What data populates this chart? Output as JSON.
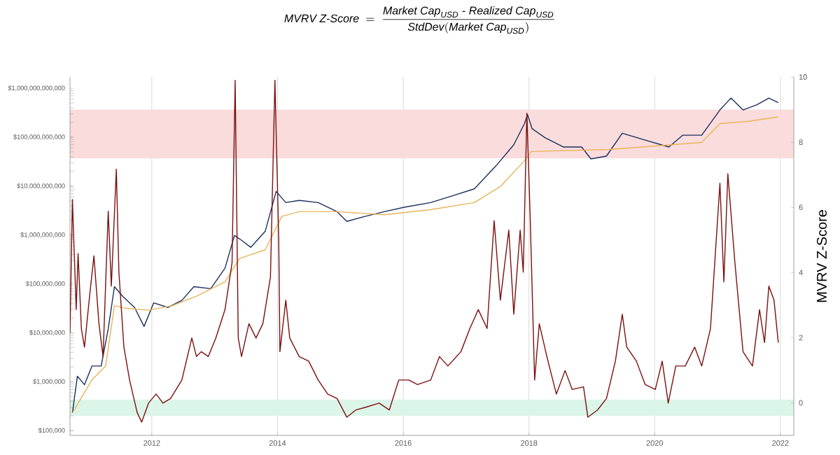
{
  "chart_data": {
    "type": "line",
    "title": "\\mathit{MVRV\\ Z\\mbox{-}Score}\\ =\\ \\frac{\\mathit{Market\\ Cap}_{\\mathit{USD}}\\mbox{ - }\\mathit{Realized\\ Cap}_{\\mathit{USD}}}{\\mathit{StdDev}(\\mathit{Market\\ Cap}_{\\mathit{USD}})}",
    "y2label": "MVRV Z-Score",
    "log": "y",
    "grid": "x",
    "xlim": [
      "2010-09-13",
      "2022-03-20"
    ],
    "xticks": [
      "2012",
      "2014",
      "2016",
      "2018",
      "2020",
      "2022"
    ],
    "ylim": [
      80000,
      1700000000000
    ],
    "yticks": [
      {
        "value": 100000,
        "label": "$100,000"
      },
      {
        "value": 1000000,
        "label": "$1,000,000"
      },
      {
        "value": 10000000,
        "label": "$10,000,000"
      },
      {
        "value": 100000000,
        "label": "$100,000,000"
      },
      {
        "value": 1000000000,
        "label": "$1,000,000,000"
      },
      {
        "value": 10000000000,
        "label": "$10,000,000,000"
      },
      {
        "value": 100000000000,
        "label": "$100,000,000,000"
      },
      {
        "value": 1000000000000,
        "label": "$1,000,000,000,000"
      }
    ],
    "y2lim": [
      -1,
      10
    ],
    "y2ticks": [
      0,
      2,
      4,
      6,
      8,
      10
    ],
    "bands": [
      {
        "axis": "y2",
        "from": 7.5,
        "to": 9,
        "color": "#fadcdc"
      },
      {
        "axis": "y2",
        "from": -0.4,
        "to": 0.1,
        "color": "#dcf5e9"
      }
    ],
    "series": [
      {
        "color": "#1b2f5e",
        "x": [
          "2010-09-27",
          "2010-10-26",
          "2010-12-06",
          "2011-01-19",
          "2011-03-13",
          "2011-04-23",
          "2011-05-29",
          "2011-07-16",
          "2011-09-23",
          "2011-11-17",
          "2012-01-12",
          "2012-04-04",
          "2012-06-24",
          "2012-09-02",
          "2012-12-09",
          "2013-03-02",
          "2013-04-26",
          "2013-06-06",
          "2013-07-30",
          "2013-10-22",
          "2013-12-24",
          "2014-02-18",
          "2014-05-07",
          "2014-08-25",
          "2014-12-13",
          "2015-02-07",
          "2015-05-25",
          "2015-09-13",
          "2016-01-08",
          "2016-06-09",
          "2016-10-12",
          "2017-02-18",
          "2017-06-24",
          "2017-10-05",
          "2017-12-06",
          "2017-12-24",
          "2018-01-19",
          "2018-04-04",
          "2018-07-19",
          "2018-11-03",
          "2018-12-27",
          "2019-03-27",
          "2019-06-27",
          "2019-11-07",
          "2020-03-24",
          "2020-06-13",
          "2020-10-01",
          "2021-01-15",
          "2021-03-20",
          "2021-05-29",
          "2021-08-18",
          "2021-10-26",
          "2021-12-20"
        ],
        "values": [
          230000,
          1300000,
          870000,
          2100000,
          2100000,
          12000000,
          88000000,
          56000000,
          33000000,
          13500000,
          41000000,
          33000000,
          46000000,
          88000000,
          80000000,
          210000000,
          980000000,
          780000000,
          560000000,
          1200000000,
          7800000000,
          4600000000,
          5100000000,
          4600000000,
          3000000000,
          1900000000,
          2400000000,
          3000000000,
          3700000000,
          4600000000,
          6300000000,
          8800000000,
          26000000000,
          70000000000,
          190000000000,
          290000000000,
          150000000000,
          98000000000,
          63000000000,
          63000000000,
          36000000000,
          41000000000,
          120000000000,
          87000000000,
          63000000000,
          110000000000,
          110000000000,
          360000000000,
          630000000000,
          360000000000,
          460000000000,
          630000000000,
          510000000000
        ]
      },
      {
        "color": "#e9b45a",
        "x": [
          "2010-09-27",
          "2011-01-19",
          "2011-04-08",
          "2011-05-29",
          "2011-07-27",
          "2011-12-13",
          "2012-04-30",
          "2012-09-17",
          "2013-03-02",
          "2013-05-25",
          "2013-10-22",
          "2014-01-26",
          "2014-05-07",
          "2014-12-13",
          "2015-09-13",
          "2016-06-09",
          "2017-02-18",
          "2017-07-19",
          "2017-12-06",
          "2018-01-15",
          "2019-04-12",
          "2020-10-01",
          "2021-01-15",
          "2021-06-24",
          "2021-12-20"
        ],
        "values": [
          230000,
          1100000,
          2100000,
          36000000,
          32000000,
          29000000,
          36000000,
          56000000,
          110000000,
          330000000,
          500000000,
          2400000000,
          3000000000,
          3000000000,
          2600000000,
          3300000000,
          4600000000,
          9800000000,
          33000000000,
          51000000000,
          56000000000,
          78000000000,
          190000000000,
          210000000000,
          260000000000
        ]
      },
      {
        "color": "#7b1010",
        "axis": "y2",
        "x": [
          "2010-09-13",
          "2010-09-27",
          "2010-10-19",
          "2010-10-30",
          "2010-11-18",
          "2010-12-06",
          "2011-01-05",
          "2011-01-30",
          "2011-02-28",
          "2011-03-24",
          "2011-04-23",
          "2011-05-11",
          "2011-06-09",
          "2011-06-24",
          "2011-07-23",
          "2011-08-25",
          "2011-10-08",
          "2011-11-03",
          "2011-12-13",
          "2012-01-26",
          "2012-03-06",
          "2012-04-19",
          "2012-06-24",
          "2012-08-21",
          "2012-09-17",
          "2012-10-15",
          "2012-11-25",
          "2013-01-08",
          "2013-03-02",
          "2013-04-12",
          "2013-04-30",
          "2013-05-18",
          "2013-06-06",
          "2013-07-19",
          "2013-08-29",
          "2013-10-08",
          "2013-11-21",
          "2013-12-17",
          "2014-01-08",
          "2014-01-15",
          "2014-02-18",
          "2014-03-13",
          "2014-05-07",
          "2014-07-01",
          "2014-08-25",
          "2014-10-19",
          "2014-12-13",
          "2015-02-07",
          "2015-04-01",
          "2015-05-25",
          "2015-08-14",
          "2015-10-12",
          "2015-12-06",
          "2016-02-03",
          "2016-03-24",
          "2016-06-09",
          "2016-07-30",
          "2016-09-17",
          "2016-12-02",
          "2017-01-23",
          "2017-03-13",
          "2017-05-03",
          "2017-06-13",
          "2017-07-19",
          "2017-09-06",
          "2017-10-05",
          "2017-11-11",
          "2017-11-29",
          "2017-12-20",
          "2018-01-08",
          "2018-02-03",
          "2018-03-02",
          "2018-04-15",
          "2018-06-09",
          "2018-07-30",
          "2018-09-09",
          "2018-11-14",
          "2018-12-09",
          "2019-02-03",
          "2019-03-27",
          "2019-05-18",
          "2019-06-27",
          "2019-07-23",
          "2019-09-17",
          "2019-11-07",
          "2020-01-05",
          "2020-02-14",
          "2020-03-20",
          "2020-05-03",
          "2020-06-27",
          "2020-08-21",
          "2020-10-01",
          "2020-11-21",
          "2021-01-15",
          "2021-02-07",
          "2021-03-02",
          "2021-04-12",
          "2021-05-29",
          "2021-07-23",
          "2021-09-02",
          "2021-10-01",
          "2021-10-26",
          "2021-11-25",
          "2021-12-20"
        ],
        "values": [
          2.14,
          6.24,
          2.86,
          4.58,
          2.28,
          1.71,
          3.29,
          4.51,
          2.43,
          1.42,
          5.88,
          3.58,
          7.17,
          4.01,
          1.71,
          0.7,
          -0.3,
          -0.59,
          -0.01,
          0.27,
          -0.01,
          0.13,
          0.7,
          1.99,
          1.42,
          1.57,
          1.42,
          1.99,
          2.86,
          4.3,
          9.9,
          1.99,
          1.42,
          2.43,
          1.99,
          2.43,
          3.86,
          9.9,
          5.02,
          1.57,
          3.15,
          1.99,
          1.42,
          1.28,
          0.7,
          0.27,
          0.13,
          -0.44,
          -0.22,
          -0.14,
          -0.01,
          -0.22,
          0.7,
          0.7,
          0.56,
          0.7,
          1.42,
          1.13,
          1.57,
          2.28,
          2.86,
          2.28,
          5.59,
          3.15,
          5.3,
          2.72,
          5.3,
          4.01,
          8.89,
          5.73,
          0.7,
          2.43,
          1.42,
          0.27,
          0.99,
          0.41,
          0.49,
          -0.44,
          -0.22,
          0.13,
          1.28,
          2.72,
          1.71,
          1.28,
          0.56,
          0.41,
          1.28,
          -0.01,
          1.13,
          1.13,
          1.71,
          1.13,
          2.28,
          6.74,
          3.71,
          7.03,
          4.3,
          1.57,
          1.13,
          2.86,
          1.85,
          3.58,
          3.15,
          1.85
        ]
      }
    ]
  }
}
